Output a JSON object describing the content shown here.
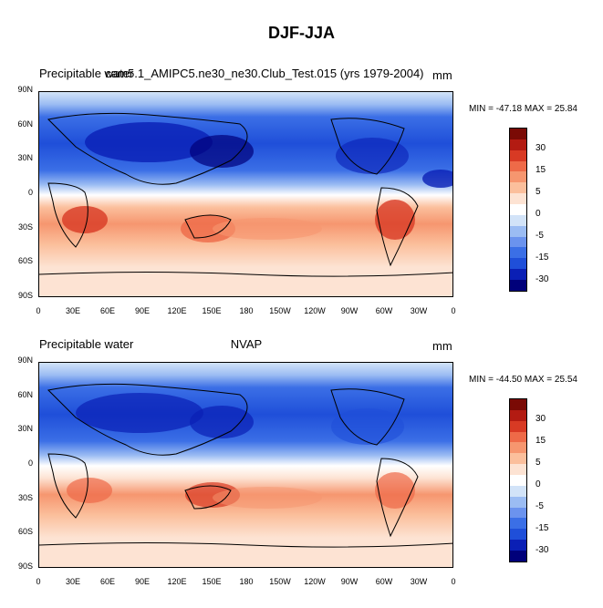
{
  "figure_title": "DJF-JJA",
  "colors": {
    "palette": [
      "#00007a",
      "#0a1fb5",
      "#1f4fd9",
      "#3b6fe6",
      "#6b93ee",
      "#9bbcf3",
      "#d2e3f8",
      "#ffffff",
      "#fde3d3",
      "#fbbf9c",
      "#f6966f",
      "#ee6a48",
      "#d83a24",
      "#b31b12",
      "#7a0a05"
    ]
  },
  "lat_labels": [
    "90N",
    "60N",
    "30N",
    "0",
    "30S",
    "60S",
    "90S"
  ],
  "lon_labels": [
    "0",
    "30E",
    "60E",
    "90E",
    "120E",
    "150E",
    "180",
    "150W",
    "120W",
    "90W",
    "60W",
    "30W",
    "0"
  ],
  "colorbar_labels": [
    "30",
    "15",
    "5",
    "0",
    "-5",
    "-15",
    "-30"
  ],
  "panels": [
    {
      "left_title": "Precipitable water",
      "center_title": "cam5.1_AMIPC5.ne30_ne30.Club_Test.015 (yrs 1979-2004)",
      "right_title": "mm",
      "minmax": "MIN = -47.18 MAX =  25.84"
    },
    {
      "left_title": "Precipitable water",
      "center_title": "NVAP",
      "right_title": "mm",
      "minmax": "MIN = -44.50 MAX =  25.54"
    }
  ]
}
